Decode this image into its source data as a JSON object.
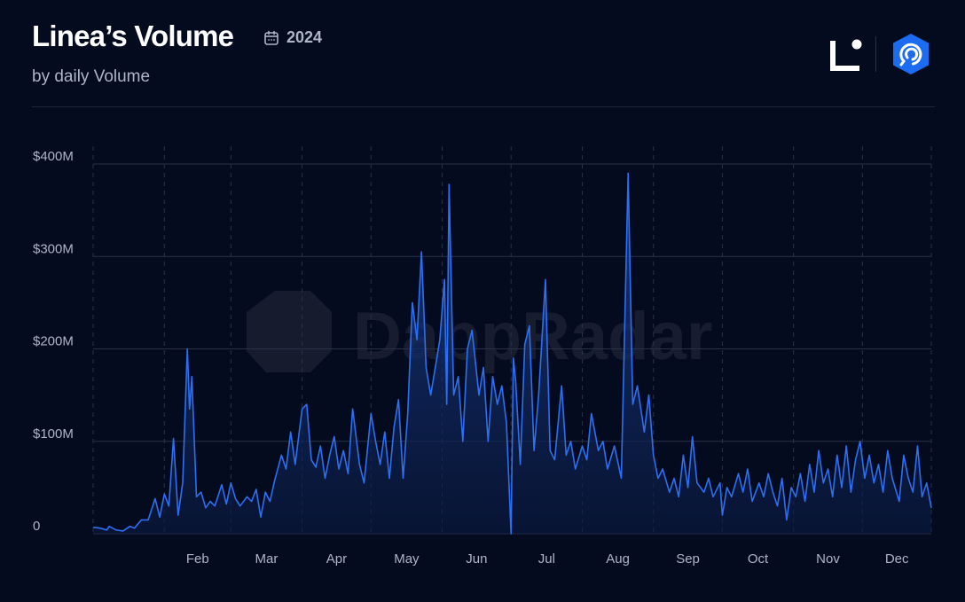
{
  "header": {
    "title": "Linea’s Volume",
    "year": "2024",
    "subtitle": "by daily Volume",
    "watermark": "DappRadar"
  },
  "icons": {
    "calendar": "calendar-icon",
    "linea_logo": "linea-logo",
    "dappradar_logo": "dappradar-logo-icon"
  },
  "colors": {
    "background": "#050b1e",
    "line": "#2d6ff2",
    "area_top": "#1a3f8e",
    "area_bottom": "#0a1a42",
    "grid": "#2a3245",
    "axis_text": "#aeb5c5",
    "logo_badge": "#1c6cf2"
  },
  "chart_data": {
    "type": "area",
    "ylabel": "",
    "xlabel": "",
    "yticks": [
      {
        "value": 0,
        "label": "0"
      },
      {
        "value": 100,
        "label": "$100M"
      },
      {
        "value": 200,
        "label": "$200M"
      },
      {
        "value": 300,
        "label": "$300M"
      },
      {
        "value": 400,
        "label": "$400M"
      }
    ],
    "ylim": [
      0,
      400
    ],
    "xlim": [
      "2024-01-01",
      "2024-12-31"
    ],
    "unit": "$M",
    "grid": true,
    "xticks": [
      {
        "date": "2024-02-01",
        "label": "Feb"
      },
      {
        "date": "2024-03-01",
        "label": "Mar"
      },
      {
        "date": "2024-04-01",
        "label": "Apr"
      },
      {
        "date": "2024-05-01",
        "label": "May"
      },
      {
        "date": "2024-06-01",
        "label": "Jun"
      },
      {
        "date": "2024-07-01",
        "label": "Jul"
      },
      {
        "date": "2024-08-01",
        "label": "Aug"
      },
      {
        "date": "2024-09-01",
        "label": "Sep"
      },
      {
        "date": "2024-10-01",
        "label": "Oct"
      },
      {
        "date": "2024-11-01",
        "label": "Nov"
      },
      {
        "date": "2024-12-01",
        "label": "Dec"
      }
    ],
    "series": [
      {
        "points": [
          [
            "2024-01-01",
            7
          ],
          [
            "2024-01-04",
            6
          ],
          [
            "2024-01-07",
            4
          ],
          [
            "2024-01-08",
            8
          ],
          [
            "2024-01-11",
            4
          ],
          [
            "2024-01-14",
            3
          ],
          [
            "2024-01-17",
            8
          ],
          [
            "2024-01-19",
            6
          ],
          [
            "2024-01-22",
            15
          ],
          [
            "2024-01-25",
            15
          ],
          [
            "2024-01-28",
            38
          ],
          [
            "2024-01-30",
            18
          ],
          [
            "2024-02-01",
            43
          ],
          [
            "2024-02-03",
            30
          ],
          [
            "2024-02-05",
            103
          ],
          [
            "2024-02-07",
            20
          ],
          [
            "2024-02-09",
            55
          ],
          [
            "2024-02-11",
            200
          ],
          [
            "2024-02-12",
            135
          ],
          [
            "2024-02-13",
            170
          ],
          [
            "2024-02-15",
            40
          ],
          [
            "2024-02-17",
            45
          ],
          [
            "2024-02-19",
            28
          ],
          [
            "2024-02-21",
            35
          ],
          [
            "2024-02-23",
            30
          ],
          [
            "2024-02-26",
            53
          ],
          [
            "2024-02-28",
            32
          ],
          [
            "2024-03-01",
            55
          ],
          [
            "2024-03-03",
            38
          ],
          [
            "2024-03-05",
            30
          ],
          [
            "2024-03-08",
            40
          ],
          [
            "2024-03-10",
            35
          ],
          [
            "2024-03-12",
            48
          ],
          [
            "2024-03-14",
            18
          ],
          [
            "2024-03-16",
            45
          ],
          [
            "2024-03-18",
            35
          ],
          [
            "2024-03-20",
            57
          ],
          [
            "2024-03-23",
            85
          ],
          [
            "2024-03-25",
            70
          ],
          [
            "2024-03-27",
            110
          ],
          [
            "2024-03-29",
            75
          ],
          [
            "2024-04-01",
            135
          ],
          [
            "2024-04-03",
            140
          ],
          [
            "2024-04-05",
            80
          ],
          [
            "2024-04-07",
            72
          ],
          [
            "2024-04-09",
            95
          ],
          [
            "2024-04-11",
            60
          ],
          [
            "2024-04-13",
            85
          ],
          [
            "2024-04-15",
            105
          ],
          [
            "2024-04-17",
            70
          ],
          [
            "2024-04-19",
            90
          ],
          [
            "2024-04-21",
            65
          ],
          [
            "2024-04-23",
            135
          ],
          [
            "2024-04-26",
            75
          ],
          [
            "2024-04-28",
            55
          ],
          [
            "2024-05-01",
            130
          ],
          [
            "2024-05-03",
            100
          ],
          [
            "2024-05-05",
            75
          ],
          [
            "2024-05-07",
            110
          ],
          [
            "2024-05-09",
            60
          ],
          [
            "2024-05-11",
            115
          ],
          [
            "2024-05-13",
            145
          ],
          [
            "2024-05-15",
            60
          ],
          [
            "2024-05-17",
            130
          ],
          [
            "2024-05-19",
            250
          ],
          [
            "2024-05-21",
            210
          ],
          [
            "2024-05-23",
            305
          ],
          [
            "2024-05-25",
            180
          ],
          [
            "2024-05-27",
            150
          ],
          [
            "2024-05-29",
            180
          ],
          [
            "2024-05-31",
            210
          ],
          [
            "2024-06-02",
            275
          ],
          [
            "2024-06-03",
            140
          ],
          [
            "2024-06-04",
            378
          ],
          [
            "2024-06-06",
            150
          ],
          [
            "2024-06-08",
            170
          ],
          [
            "2024-06-10",
            100
          ],
          [
            "2024-06-12",
            200
          ],
          [
            "2024-06-14",
            220
          ],
          [
            "2024-06-17",
            150
          ],
          [
            "2024-06-19",
            180
          ],
          [
            "2024-06-21",
            100
          ],
          [
            "2024-06-23",
            170
          ],
          [
            "2024-06-25",
            140
          ],
          [
            "2024-06-27",
            160
          ],
          [
            "2024-06-29",
            120
          ],
          [
            "2024-07-01",
            0
          ],
          [
            "2024-07-02",
            190
          ],
          [
            "2024-07-03",
            165
          ],
          [
            "2024-07-05",
            75
          ],
          [
            "2024-07-07",
            205
          ],
          [
            "2024-07-09",
            225
          ],
          [
            "2024-07-11",
            90
          ],
          [
            "2024-07-13",
            150
          ],
          [
            "2024-07-16",
            275
          ],
          [
            "2024-07-18",
            90
          ],
          [
            "2024-07-20",
            80
          ],
          [
            "2024-07-23",
            160
          ],
          [
            "2024-07-25",
            85
          ],
          [
            "2024-07-27",
            100
          ],
          [
            "2024-07-29",
            70
          ],
          [
            "2024-08-01",
            95
          ],
          [
            "2024-08-03",
            80
          ],
          [
            "2024-08-05",
            130
          ],
          [
            "2024-08-08",
            90
          ],
          [
            "2024-08-10",
            100
          ],
          [
            "2024-08-12",
            70
          ],
          [
            "2024-08-15",
            95
          ],
          [
            "2024-08-18",
            60
          ],
          [
            "2024-08-21",
            390
          ],
          [
            "2024-08-23",
            140
          ],
          [
            "2024-08-25",
            160
          ],
          [
            "2024-08-28",
            110
          ],
          [
            "2024-08-30",
            150
          ],
          [
            "2024-09-01",
            85
          ],
          [
            "2024-09-03",
            60
          ],
          [
            "2024-09-05",
            70
          ],
          [
            "2024-09-08",
            45
          ],
          [
            "2024-09-10",
            60
          ],
          [
            "2024-09-12",
            40
          ],
          [
            "2024-09-14",
            85
          ],
          [
            "2024-09-16",
            50
          ],
          [
            "2024-09-18",
            105
          ],
          [
            "2024-09-20",
            55
          ],
          [
            "2024-09-23",
            45
          ],
          [
            "2024-09-25",
            60
          ],
          [
            "2024-09-27",
            40
          ],
          [
            "2024-09-30",
            55
          ],
          [
            "2024-10-01",
            20
          ],
          [
            "2024-10-03",
            50
          ],
          [
            "2024-10-05",
            40
          ],
          [
            "2024-10-08",
            65
          ],
          [
            "2024-10-10",
            45
          ],
          [
            "2024-10-12",
            70
          ],
          [
            "2024-10-14",
            35
          ],
          [
            "2024-10-17",
            55
          ],
          [
            "2024-10-19",
            40
          ],
          [
            "2024-10-21",
            65
          ],
          [
            "2024-10-23",
            45
          ],
          [
            "2024-10-25",
            30
          ],
          [
            "2024-10-27",
            60
          ],
          [
            "2024-10-29",
            15
          ],
          [
            "2024-10-31",
            50
          ],
          [
            "2024-11-02",
            40
          ],
          [
            "2024-11-04",
            65
          ],
          [
            "2024-11-06",
            35
          ],
          [
            "2024-11-08",
            75
          ],
          [
            "2024-11-10",
            45
          ],
          [
            "2024-11-12",
            90
          ],
          [
            "2024-11-14",
            55
          ],
          [
            "2024-11-16",
            70
          ],
          [
            "2024-11-18",
            40
          ],
          [
            "2024-11-20",
            85
          ],
          [
            "2024-11-22",
            50
          ],
          [
            "2024-11-24",
            95
          ],
          [
            "2024-11-26",
            45
          ],
          [
            "2024-11-28",
            80
          ],
          [
            "2024-11-30",
            100
          ],
          [
            "2024-12-02",
            60
          ],
          [
            "2024-12-04",
            85
          ],
          [
            "2024-12-06",
            55
          ],
          [
            "2024-12-08",
            75
          ],
          [
            "2024-12-10",
            45
          ],
          [
            "2024-12-12",
            90
          ],
          [
            "2024-12-14",
            60
          ],
          [
            "2024-12-17",
            35
          ],
          [
            "2024-12-19",
            85
          ],
          [
            "2024-12-21",
            60
          ],
          [
            "2024-12-23",
            45
          ],
          [
            "2024-12-25",
            95
          ],
          [
            "2024-12-27",
            40
          ],
          [
            "2024-12-29",
            55
          ],
          [
            "2024-12-31",
            28
          ]
        ]
      }
    ]
  }
}
